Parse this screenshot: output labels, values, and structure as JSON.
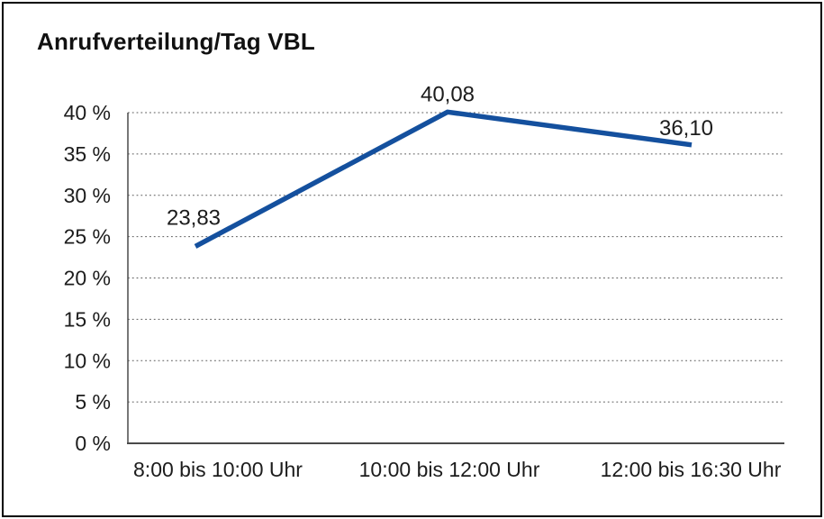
{
  "chart_data": {
    "type": "line",
    "title": "Anrufverteilung/Tag VBL",
    "categories": [
      "8:00 bis 10:00 Uhr",
      "10:00 bis 12:00 Uhr",
      "12:00 bis 16:30 Uhr"
    ],
    "values": [
      23.83,
      40.08,
      36.1
    ],
    "data_labels": [
      "23,83",
      "40,08",
      "36,10"
    ],
    "ylim": [
      0,
      40
    ],
    "ytick_step": 5,
    "ytick_labels": [
      "0 %",
      "5 %",
      "10 %",
      "15 %",
      "20 %",
      "25 %",
      "30 %",
      "35 %",
      "40 %"
    ],
    "xlabel": "",
    "ylabel": "",
    "legend": "none",
    "grid": {
      "horizontal": true,
      "style": "dotted",
      "color": "#5a5a5a"
    },
    "line_color": "#14509E",
    "axis_color": "#4a4a4a",
    "text_color": "#1c1c1c",
    "background": "#ffffff",
    "border_color": "#000000"
  }
}
